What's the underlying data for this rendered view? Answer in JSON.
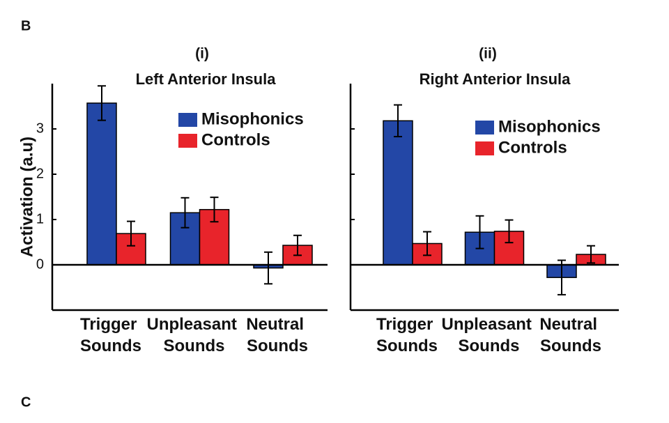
{
  "panel_labels": [
    "B",
    "C"
  ],
  "chart_data": [
    {
      "type": "bar",
      "subtitle": "(i)",
      "title": "Left Anterior Insula",
      "y_label": "Activation (a.u)",
      "categories": [
        "Trigger Sounds",
        "Unpleasant Sounds",
        "Neutral Sounds"
      ],
      "series": [
        {
          "name": "Misophonics",
          "color": "#2347a6",
          "values": [
            3.57,
            1.15,
            -0.07
          ],
          "errors": [
            0.38,
            0.33,
            0.35
          ]
        },
        {
          "name": "Controls",
          "color": "#e8242b",
          "values": [
            0.69,
            1.22,
            0.43
          ],
          "errors": [
            0.27,
            0.27,
            0.22
          ]
        }
      ],
      "ylim": [
        -1,
        4
      ],
      "yticks": [
        0,
        1,
        2,
        3
      ],
      "show_ytick_labels": true
    },
    {
      "type": "bar",
      "subtitle": "(ii)",
      "title": "Right Anterior Insula",
      "categories": [
        "Trigger Sounds",
        "Unpleasant Sounds",
        "Neutral Sounds"
      ],
      "series": [
        {
          "name": "Misophonics",
          "color": "#2347a6",
          "values": [
            3.18,
            0.72,
            -0.28
          ],
          "errors": [
            0.35,
            0.36,
            0.38
          ]
        },
        {
          "name": "Controls",
          "color": "#e8242b",
          "values": [
            0.47,
            0.74,
            0.23
          ],
          "errors": [
            0.26,
            0.25,
            0.19
          ]
        }
      ],
      "ylim": [
        -1,
        4
      ],
      "yticks": [
        0,
        1,
        2,
        3
      ],
      "show_ytick_labels": false
    }
  ]
}
